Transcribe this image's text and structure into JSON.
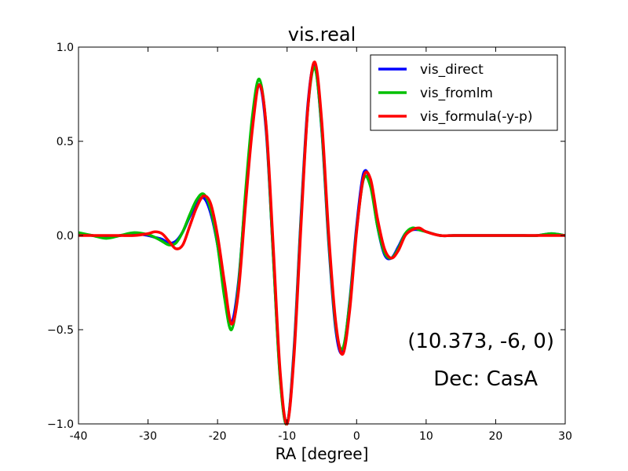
{
  "chart_data": {
    "type": "line",
    "title": "vis.real",
    "xlabel": "RA [degree]",
    "ylabel": "",
    "xlim": [
      -40,
      30
    ],
    "ylim": [
      -1.0,
      1.0
    ],
    "xticks": [
      -40,
      -30,
      -20,
      -10,
      0,
      10,
      20,
      30
    ],
    "xtick_labels": [
      "-40",
      "-30",
      "-20",
      "-10",
      "0",
      "10",
      "20",
      "30"
    ],
    "yticks": [
      -1.0,
      -0.5,
      0.0,
      0.5,
      1.0
    ],
    "ytick_labels": [
      "−1.0",
      "−0.5",
      "0.0",
      "0.5",
      "1.0"
    ],
    "grid": false,
    "legend_position": "top-right",
    "annotations": [
      "(10.373, -6, 0)",
      "Dec: CasA"
    ],
    "series": [
      {
        "name": "vis_direct",
        "color": "#0000ff",
        "x": [
          -40,
          -38,
          -36,
          -34,
          -32,
          -30,
          -29,
          -28,
          -27,
          -26,
          -25,
          -24,
          -23,
          -22,
          -21,
          -20,
          -19,
          -18,
          -17,
          -16,
          -15,
          -14,
          -13,
          -12,
          -11,
          -10,
          -9,
          -8,
          -7,
          -6,
          -5,
          -4,
          -3,
          -2,
          -1,
          0,
          1,
          2,
          3,
          4,
          5,
          6,
          7,
          8,
          9,
          10,
          12,
          14,
          16,
          18,
          20,
          22,
          24,
          26,
          28,
          30
        ],
        "y": [
          0.01,
          0.0,
          -0.01,
          0.0,
          0.01,
          0.0,
          -0.01,
          -0.02,
          -0.04,
          -0.03,
          0.02,
          0.1,
          0.17,
          0.2,
          0.12,
          -0.05,
          -0.3,
          -0.46,
          -0.25,
          0.2,
          0.6,
          0.8,
          0.55,
          -0.1,
          -0.75,
          -1.0,
          -0.6,
          0.1,
          0.7,
          0.9,
          0.55,
          -0.05,
          -0.5,
          -0.62,
          -0.35,
          0.05,
          0.33,
          0.28,
          0.05,
          -0.1,
          -0.12,
          -0.06,
          0.01,
          0.03,
          0.03,
          0.02,
          0.0,
          0.0,
          0.0,
          0.0,
          0.0,
          0.0,
          0.0,
          0.0,
          0.01,
          0.0
        ]
      },
      {
        "name": "vis_fromlm",
        "color": "#00c000",
        "x": [
          -40,
          -38,
          -36,
          -34,
          -32,
          -30,
          -29,
          -28,
          -27,
          -26,
          -25,
          -24,
          -23,
          -22,
          -21,
          -20,
          -19,
          -18,
          -17,
          -16,
          -15,
          -14,
          -13,
          -12,
          -11,
          -10,
          -9,
          -8,
          -7,
          -6,
          -5,
          -4,
          -3,
          -2,
          -1,
          0,
          1,
          2,
          3,
          4,
          5,
          6,
          7,
          8,
          9,
          10,
          12,
          14,
          16,
          18,
          20,
          22,
          24,
          26,
          28,
          30
        ],
        "y": [
          0.015,
          0.0,
          -0.015,
          0.0,
          0.015,
          0.005,
          -0.01,
          -0.03,
          -0.05,
          -0.04,
          0.02,
          0.11,
          0.19,
          0.22,
          0.14,
          -0.05,
          -0.33,
          -0.5,
          -0.27,
          0.22,
          0.63,
          0.83,
          0.57,
          -0.1,
          -0.76,
          -1.0,
          -0.62,
          0.08,
          0.68,
          0.89,
          0.56,
          -0.03,
          -0.48,
          -0.6,
          -0.36,
          0.03,
          0.3,
          0.26,
          0.05,
          -0.09,
          -0.12,
          -0.07,
          0.01,
          0.04,
          0.03,
          0.02,
          0.0,
          0.0,
          0.0,
          0.0,
          0.0,
          0.0,
          0.0,
          0.0,
          0.01,
          0.0
        ]
      },
      {
        "name": "vis_formula(-y-p)",
        "color": "#ff0000",
        "x": [
          -40,
          -38,
          -36,
          -34,
          -32,
          -30,
          -29,
          -28,
          -27,
          -26,
          -25,
          -24,
          -23,
          -22,
          -21,
          -20,
          -19,
          -18,
          -17,
          -16,
          -15,
          -14,
          -13,
          -12,
          -11,
          -10,
          -9,
          -8,
          -7,
          -6,
          -5,
          -4,
          -3,
          -2,
          -1,
          0,
          1,
          2,
          3,
          4,
          5,
          6,
          7,
          8,
          9,
          10,
          12,
          14,
          16,
          18,
          20,
          22,
          24,
          26,
          28,
          30
        ],
        "y": [
          0.0,
          0.0,
          0.0,
          0.0,
          0.0,
          0.01,
          0.02,
          0.01,
          -0.03,
          -0.07,
          -0.05,
          0.05,
          0.15,
          0.21,
          0.17,
          0.0,
          -0.25,
          -0.47,
          -0.3,
          0.15,
          0.56,
          0.8,
          0.58,
          -0.05,
          -0.72,
          -1.0,
          -0.64,
          0.05,
          0.68,
          0.92,
          0.6,
          0.0,
          -0.46,
          -0.63,
          -0.4,
          0.02,
          0.31,
          0.3,
          0.09,
          -0.07,
          -0.12,
          -0.08,
          0.0,
          0.03,
          0.04,
          0.02,
          0.0,
          0.0,
          0.0,
          0.0,
          0.0,
          0.0,
          0.0,
          0.0,
          0.0,
          0.0
        ]
      }
    ]
  }
}
